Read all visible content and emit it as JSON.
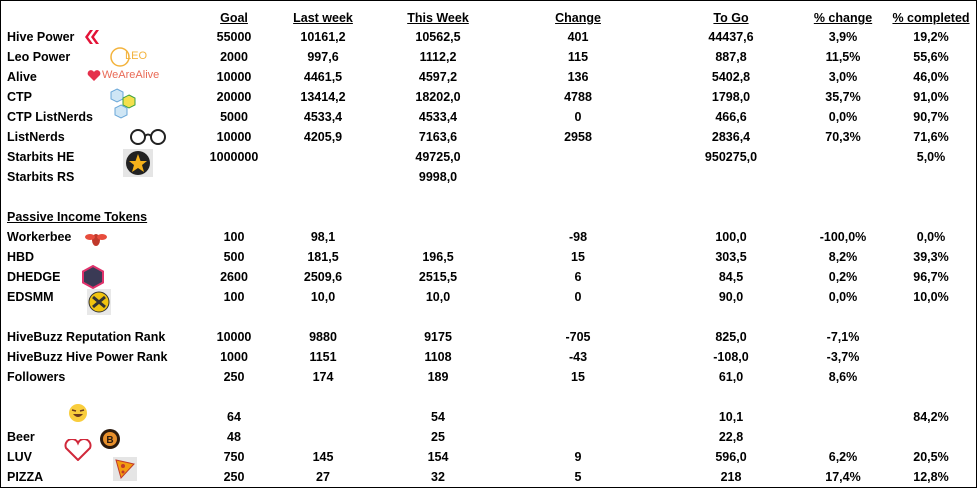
{
  "table": {
    "headers": [
      "Goal",
      "Last week",
      "This Week",
      "Change",
      "To Go",
      "% change",
      "% completed"
    ],
    "logos": {
      "leo": "LEO",
      "alive": "WeAreAlive"
    },
    "groups": [
      {
        "rows": [
          [
            "Hive Power",
            "55000",
            "10161,2",
            "10562,5",
            "401",
            "44437,6",
            "3,9%",
            "19,2%"
          ],
          [
            "Leo Power",
            "2000",
            "997,6",
            "1112,2",
            "115",
            "887,8",
            "11,5%",
            "55,6%"
          ],
          [
            "Alive",
            "10000",
            "4461,5",
            "4597,2",
            "136",
            "5402,8",
            "3,0%",
            "46,0%"
          ],
          [
            "CTP",
            "20000",
            "13414,2",
            "18202,0",
            "4788",
            "1798,0",
            "35,7%",
            "91,0%"
          ],
          [
            "CTP ListNerds",
            "5000",
            "4533,4",
            "4533,4",
            "0",
            "466,6",
            "0,0%",
            "90,7%"
          ],
          [
            "ListNerds",
            "10000",
            "4205,9",
            "7163,6",
            "2958",
            "2836,4",
            "70,3%",
            "71,6%"
          ],
          [
            "Starbits HE",
            "1000000",
            null,
            "49725,0",
            null,
            "950275,0",
            null,
            "5,0%"
          ],
          [
            "Starbits RS",
            null,
            null,
            "9998,0",
            null,
            null,
            null,
            null
          ]
        ]
      },
      {
        "title": "Passive Income Tokens",
        "rows": [
          [
            "Workerbee",
            "100",
            "98,1",
            null,
            "-98",
            "100,0",
            "-100,0%",
            "0,0%"
          ],
          [
            "HBD",
            "500",
            "181,5",
            "196,5",
            "15",
            "303,5",
            "8,2%",
            "39,3%"
          ],
          [
            "DHEDGE",
            "2600",
            "2509,6",
            "2515,5",
            "6",
            "84,5",
            "0,2%",
            "96,7%"
          ],
          [
            "EDSMM",
            "100",
            "10,0",
            "10,0",
            "0",
            "90,0",
            "0,0%",
            "10,0%"
          ]
        ]
      },
      {
        "rows": [
          [
            "HiveBuzz Reputation Rank",
            "10000",
            "9880",
            "9175",
            "-705",
            "825,0",
            "-7,1%",
            null
          ],
          [
            "HiveBuzz Hive Power Rank",
            "1000",
            "1151",
            "1108",
            "-43",
            "-108,0",
            "-3,7%",
            null
          ],
          [
            "Followers",
            "250",
            "174",
            "189",
            "15",
            "61,0",
            "8,6%",
            null
          ]
        ]
      },
      {
        "rows": [
          [
            null,
            "64",
            null,
            "54",
            null,
            "10,1",
            null,
            "84,2%"
          ],
          [
            "Beer",
            "48",
            null,
            "25",
            null,
            "22,8",
            null,
            null
          ],
          [
            "LUV",
            "750",
            "145",
            "154",
            "9",
            "596,0",
            "6,2%",
            "20,5%"
          ],
          [
            "PIZZA",
            "250",
            "27",
            "32",
            "5",
            "218",
            "17,4%",
            "12,8%"
          ]
        ]
      }
    ]
  }
}
